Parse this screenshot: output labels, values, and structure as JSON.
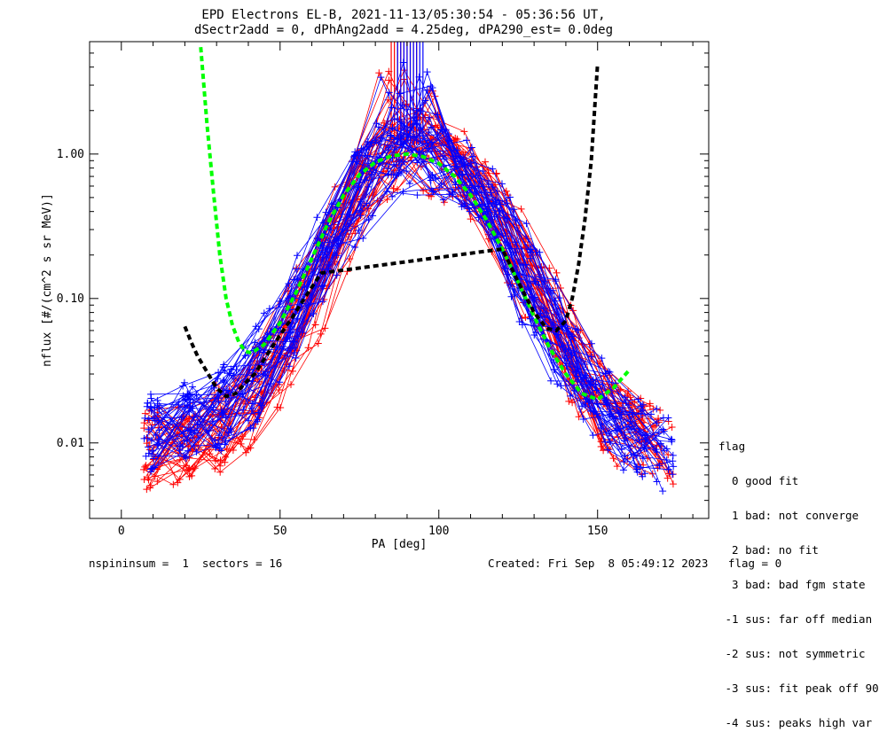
{
  "chart_data": {
    "type": "line",
    "title": "EPD Electrons EL-B, 2021-11-13/05:30:54 - 05:36:56 UT,",
    "subtitle": "dSectr2add = 0, dPhAng2add = 4.25deg, dPA290_est=   0.0deg",
    "xlabel": "PA [deg]",
    "ylabel": "nflux [#/(cm^2 s sr MeV)]",
    "xlim": [
      -10,
      185
    ],
    "ylim": [
      0.003,
      6.0
    ],
    "yscale": "log",
    "x_ticks": [
      0,
      50,
      100,
      150
    ],
    "x_tick_labels": [
      "0",
      "50",
      "100",
      "150"
    ],
    "y_ticks": [
      0.01,
      0.1,
      1.0
    ],
    "y_tick_labels": [
      "0.01",
      "0.10",
      "1.00"
    ],
    "grid": false,
    "series": [
      {
        "color": "#ff0000",
        "style": "spectra-with-plus-markers",
        "profile_x": [
          8,
          20,
          30,
          40,
          50,
          60,
          70,
          80,
          90,
          100,
          110,
          120,
          130,
          140,
          150,
          160,
          173
        ],
        "profile_y": [
          0.009,
          0.01,
          0.012,
          0.018,
          0.04,
          0.1,
          0.35,
          0.85,
          1.05,
          0.95,
          0.7,
          0.35,
          0.12,
          0.05,
          0.018,
          0.012,
          0.009
        ]
      },
      {
        "color": "#0000ff",
        "style": "spectra-with-plus-markers",
        "profile_x": [
          8,
          20,
          30,
          40,
          50,
          60,
          70,
          80,
          90,
          100,
          110,
          120,
          130,
          140,
          150,
          160,
          173
        ],
        "profile_y": [
          0.012,
          0.014,
          0.016,
          0.025,
          0.05,
          0.13,
          0.4,
          0.85,
          1.0,
          0.95,
          0.65,
          0.3,
          0.11,
          0.045,
          0.02,
          0.012,
          0.008
        ]
      },
      {
        "color": "#00ff00",
        "style": "dashed-fit",
        "x": [
          25,
          27,
          29,
          31,
          33,
          35,
          37,
          39,
          41,
          45,
          50,
          55,
          60,
          65,
          70,
          75,
          80,
          85,
          90,
          95,
          100,
          105,
          110,
          115,
          120,
          125,
          130,
          135,
          140,
          145,
          150,
          155,
          160
        ],
        "y": [
          5.5,
          1.6,
          0.55,
          0.2,
          0.1,
          0.065,
          0.05,
          0.043,
          0.042,
          0.048,
          0.068,
          0.11,
          0.19,
          0.33,
          0.52,
          0.72,
          0.88,
          0.97,
          1.0,
          0.96,
          0.86,
          0.7,
          0.52,
          0.35,
          0.22,
          0.13,
          0.075,
          0.045,
          0.03,
          0.022,
          0.02,
          0.024,
          0.032
        ]
      },
      {
        "color": "#000000",
        "style": "dashed-fit",
        "x": [
          20,
          22,
          24,
          27,
          30,
          33,
          36,
          39,
          42,
          45,
          48,
          51,
          54,
          57,
          60,
          63,
          120,
          125,
          130,
          134,
          137,
          140,
          142,
          144,
          146,
          148,
          150
        ],
        "y": [
          0.064,
          0.05,
          0.04,
          0.031,
          0.024,
          0.021,
          0.022,
          0.026,
          0.03,
          0.038,
          0.048,
          0.06,
          0.075,
          0.095,
          0.12,
          0.15,
          0.22,
          0.13,
          0.08,
          0.062,
          0.06,
          0.07,
          0.1,
          0.17,
          0.35,
          0.9,
          4.2
        ]
      }
    ]
  },
  "legend": {
    "title": "flag",
    "items": [
      "  0 good fit",
      "  1 bad: not converge",
      "  2 bad: no fit",
      "  3 bad: bad fgm state",
      " -1 sus: far off median",
      " -2 sus: not symmetric",
      " -3 sus: fit peak off 90",
      " -4 sus: peaks high var"
    ]
  },
  "footer": {
    "left": "nspininsum =  1  sectors = 16",
    "right": "Created: Fri Sep  8 05:49:12 2023   flag = 0"
  }
}
